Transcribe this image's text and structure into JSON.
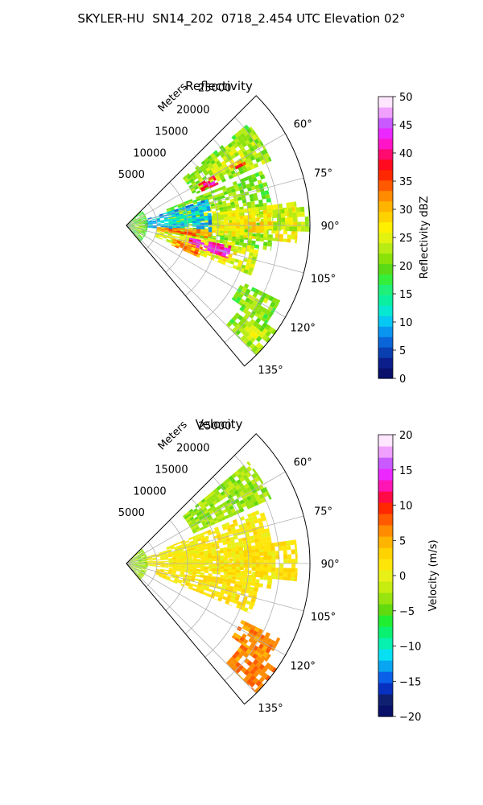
{
  "title": "SKYLER-HU  SN14_202  0718_2.454 UTC Elevation 02°",
  "colors": {
    "grid": "#b0b0b0",
    "spine": "#000000",
    "reflectivity_cmap": [
      "#08106a",
      "#0b1e8c",
      "#0a3fb0",
      "#0a66d8",
      "#0a96f0",
      "#06c8f2",
      "#06e8d2",
      "#0af0a0",
      "#1ef07a",
      "#35ee3c",
      "#5ada14",
      "#8ae20a",
      "#b8ec14",
      "#e4f210",
      "#fff000",
      "#ffd200",
      "#ffb400",
      "#ff8c00",
      "#ff5a00",
      "#ff2800",
      "#ff0a1e",
      "#ff0a6e",
      "#ff14c8",
      "#ea28ff",
      "#c85aff",
      "#f0a0ff",
      "#ffe6ff"
    ],
    "velocity_cmap": [
      "#08106a",
      "#102070",
      "#0830c0",
      "#0a60e8",
      "#08a6f0",
      "#06e0f2",
      "#06f0b0",
      "#0af070",
      "#20ee30",
      "#62da10",
      "#98e40e",
      "#c6ec10",
      "#e8f018",
      "#ffe60a",
      "#ffd200",
      "#ffb400",
      "#ff8c00",
      "#ff5a00",
      "#ff2800",
      "#ff0a46",
      "#ff14b4",
      "#ea28ff",
      "#c85aff",
      "#f0a0ff",
      "#ffe6ff"
    ]
  },
  "charts": [
    {
      "title": "Reflectivity",
      "range_axis_label": "Meters",
      "range_ticks": [
        "5000",
        "10000",
        "15000",
        "20000",
        "25000"
      ],
      "azimuth_ticks": [
        "60°",
        "75°",
        "90°",
        "105°",
        "120°",
        "135°"
      ],
      "colorbar_label": "Reflectivity dBZ",
      "colorbar_ticks": [
        "0",
        "5",
        "10",
        "15",
        "20",
        "25",
        "30",
        "35",
        "40",
        "45",
        "50"
      ]
    },
    {
      "title": "Velocity",
      "range_axis_label": "Meters",
      "range_ticks": [
        "5000",
        "10000",
        "15000",
        "20000",
        "25000"
      ],
      "azimuth_ticks": [
        "60°",
        "75°",
        "90°",
        "105°",
        "120°",
        "135°"
      ],
      "colorbar_label": "Velocity (m/s)",
      "colorbar_ticks": [
        "−20",
        "−15",
        "−10",
        "−5",
        "0",
        "5",
        "10",
        "15",
        "20"
      ]
    }
  ],
  "chart_data": [
    {
      "type": "heatmap",
      "title": "Reflectivity",
      "projection": "polar sector",
      "azimuth_range_deg": [
        45,
        140
      ],
      "azimuth_ticks_deg": [
        60,
        75,
        90,
        105,
        120,
        135
      ],
      "range_ticks_m": [
        5000,
        10000,
        15000,
        20000,
        25000
      ],
      "range_max_m": 30000,
      "colorbar": {
        "label": "Reflectivity dBZ",
        "range": [
          0,
          50
        ],
        "ticks": [
          0,
          5,
          10,
          15,
          20,
          25,
          30,
          35,
          40,
          45,
          50
        ]
      },
      "echo_cells": [
        {
          "az": [
            50,
            66
          ],
          "r": [
            12000,
            26000
          ],
          "dbz": 21
        },
        {
          "az": [
            60,
            66
          ],
          "r": [
            13500,
            16500
          ],
          "dbz": 37
        },
        {
          "az": [
            60,
            63
          ],
          "r": [
            19500,
            22000
          ],
          "dbz": 33
        },
        {
          "az": [
            68,
            100
          ],
          "r": [
            7000,
            24000
          ],
          "dbz": 20
        },
        {
          "az": [
            72,
            96
          ],
          "r": [
            3000,
            14000
          ],
          "dbz": 9
        },
        {
          "az": [
            82,
            96
          ],
          "r": [
            14000,
            28000
          ],
          "dbz": 25
        },
        {
          "az": [
            84,
            92
          ],
          "r": [
            24000,
            30000
          ],
          "dbz": 22
        },
        {
          "az": [
            93,
            100
          ],
          "r": [
            5000,
            14000
          ],
          "dbz": 31
        },
        {
          "az": [
            99,
            112
          ],
          "r": [
            5000,
            22000
          ],
          "dbz": 24
        },
        {
          "az": [
            101,
            108
          ],
          "r": [
            10500,
            17500
          ],
          "dbz": 41
        },
        {
          "az": [
            106,
            114
          ],
          "r": [
            8000,
            13000
          ],
          "dbz": 31
        },
        {
          "az": [
            116,
            125
          ],
          "r": [
            21000,
            28000
          ],
          "dbz": 20
        },
        {
          "az": [
            125,
            135
          ],
          "r": [
            23000,
            30000
          ],
          "dbz": 21
        },
        {
          "az": [
            45,
            140
          ],
          "r": [
            0,
            3500
          ],
          "dbz": 18
        }
      ]
    },
    {
      "type": "heatmap",
      "title": "Velocity",
      "projection": "polar sector",
      "azimuth_range_deg": [
        45,
        140
      ],
      "azimuth_ticks_deg": [
        60,
        75,
        90,
        105,
        120,
        135
      ],
      "range_ticks_m": [
        5000,
        10000,
        15000,
        20000,
        25000
      ],
      "range_max_m": 30000,
      "colorbar": {
        "label": "Velocity (m/s)",
        "range": [
          -20,
          20
        ],
        "ticks": [
          -20,
          -15,
          -10,
          -5,
          0,
          5,
          10,
          15,
          20
        ]
      },
      "echo_cells": [
        {
          "az": [
            50,
            66
          ],
          "r": [
            12000,
            26000
          ],
          "vel": -3
        },
        {
          "az": [
            68,
            100
          ],
          "r": [
            7000,
            24000
          ],
          "vel": 1
        },
        {
          "az": [
            72,
            96
          ],
          "r": [
            3000,
            14000
          ],
          "vel": 1
        },
        {
          "az": [
            82,
            96
          ],
          "r": [
            14000,
            28000
          ],
          "vel": 2
        },
        {
          "az": [
            99,
            112
          ],
          "r": [
            5000,
            22000
          ],
          "vel": 2
        },
        {
          "az": [
            116,
            125
          ],
          "r": [
            21000,
            28000
          ],
          "vel": 6
        },
        {
          "az": [
            125,
            135
          ],
          "r": [
            23000,
            30000
          ],
          "vel": 7
        },
        {
          "az": [
            45,
            140
          ],
          "r": [
            0,
            3500
          ],
          "vel": -3
        }
      ]
    }
  ]
}
